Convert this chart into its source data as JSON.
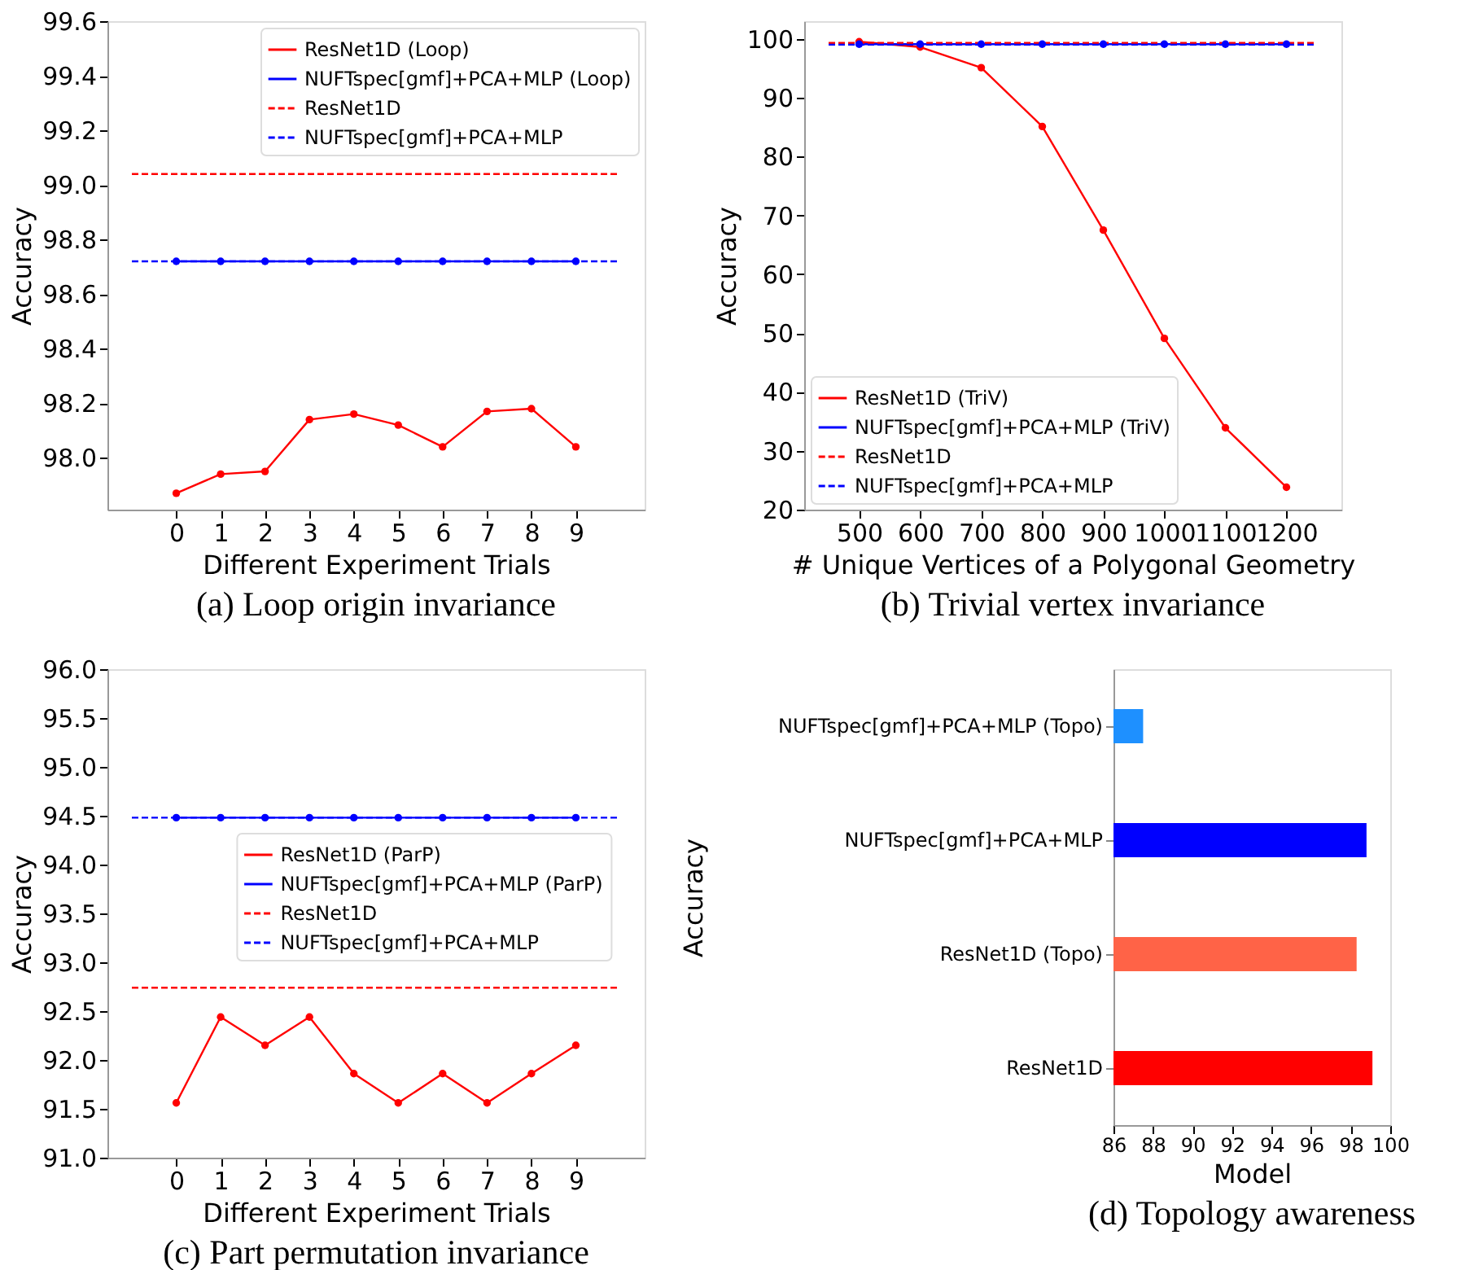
{
  "chart_data": [
    {
      "type": "line",
      "title": "(a) Loop origin invariance",
      "xlabel": "Different Experiment Trials",
      "ylabel": "Accuracy",
      "xlim": [
        -1.55,
        10.55
      ],
      "ylim": [
        97.81,
        99.6
      ],
      "xticks": [
        0,
        1,
        2,
        3,
        4,
        5,
        6,
        7,
        8,
        9
      ],
      "yticks": [
        {
          "value": 98,
          "label": "98.0"
        },
        98.2,
        98.4,
        98.6,
        98.8,
        {
          "value": 99,
          "label": "99.0"
        },
        99.2,
        99.4,
        99.6
      ],
      "grid": false,
      "legend": "top right",
      "series": [
        {
          "name": "ResNet1D (Loop)",
          "color": "#ff0000",
          "marker": "circle",
          "line_style": "solid",
          "x": [
            0,
            1,
            2,
            3,
            4,
            5,
            6,
            7,
            8,
            9
          ],
          "values": [
            97.87,
            97.94,
            97.95,
            98.14,
            98.16,
            98.12,
            98.04,
            98.17,
            98.18,
            98.04
          ]
        },
        {
          "name": "NUFTspec[gmf]+PCA+MLP (Loop)",
          "color": "#0000ff",
          "marker": "circle",
          "line_style": "solid",
          "x": [
            0,
            1,
            2,
            3,
            4,
            5,
            6,
            7,
            8,
            9
          ],
          "values": [
            98.72,
            98.72,
            98.72,
            98.72,
            98.72,
            98.72,
            98.72,
            98.72,
            98.72,
            98.72
          ]
        },
        {
          "name": "ResNet1D",
          "color": "#ff0000",
          "marker": "none",
          "line_style": "dashed",
          "x": [
            -1,
            10
          ],
          "values": [
            99.04,
            99.04
          ]
        },
        {
          "name": "NUFTspec[gmf]+PCA+MLP",
          "color": "#0000ff",
          "marker": "none",
          "line_style": "dashed",
          "x": [
            -1,
            10
          ],
          "values": [
            98.72,
            98.72
          ]
        }
      ]
    },
    {
      "type": "line",
      "title": "(b) Trivial vertex invariance",
      "xlabel": "# Unique Vertices of a Polygonal Geometry",
      "ylabel": "Accuracy",
      "xlim": [
        410,
        1290
      ],
      "ylim": [
        20,
        103
      ],
      "xticks": [
        500,
        600,
        700,
        800,
        900,
        1000,
        1100,
        1200
      ],
      "yticks": [
        20,
        30,
        40,
        50,
        60,
        70,
        80,
        90,
        100
      ],
      "grid": false,
      "legend": "bottom left",
      "series": [
        {
          "name": "ResNet1D (TriV)",
          "color": "#ff0000",
          "marker": "circle",
          "line_style": "solid",
          "x": [
            500,
            600,
            700,
            800,
            900,
            1000,
            1100,
            1200
          ],
          "values": [
            99.5,
            98.6,
            95.1,
            85.1,
            67.5,
            49.1,
            33.9,
            23.8
          ]
        },
        {
          "name": "NUFTspec[gmf]+PCA+MLP (TriV)",
          "color": "#0000ff",
          "marker": "circle",
          "line_style": "solid",
          "x": [
            500,
            600,
            700,
            800,
            900,
            1000,
            1100,
            1200
          ],
          "values": [
            99.1,
            99.1,
            99.1,
            99.1,
            99.1,
            99.1,
            99.1,
            99.1
          ]
        },
        {
          "name": "ResNet1D",
          "color": "#ff0000",
          "marker": "none",
          "line_style": "dashed",
          "x": [
            450,
            1250
          ],
          "values": [
            99.3,
            99.3
          ]
        },
        {
          "name": "NUFTspec[gmf]+PCA+MLP",
          "color": "#0000ff",
          "marker": "none",
          "line_style": "dashed",
          "x": [
            450,
            1250
          ],
          "values": [
            99.0,
            99.0
          ]
        }
      ]
    },
    {
      "type": "line",
      "title": "(c) Part permutation invariance",
      "xlabel": "Different Experiment Trials",
      "ylabel": "Accuracy",
      "xlim": [
        -1.55,
        10.55
      ],
      "ylim": [
        91,
        96
      ],
      "xticks": [
        0,
        1,
        2,
        3,
        4,
        5,
        6,
        7,
        8,
        9
      ],
      "yticks": [
        {
          "value": 91,
          "label": "91.0"
        },
        91.5,
        {
          "value": 92,
          "label": "92.0"
        },
        92.5,
        {
          "value": 93,
          "label": "93.0"
        },
        93.5,
        {
          "value": 94,
          "label": "94.0"
        },
        94.5,
        {
          "value": 95,
          "label": "95.0"
        },
        95.5,
        {
          "value": 96,
          "label": "96.0"
        }
      ],
      "grid": false,
      "legend": "right",
      "series": [
        {
          "name": "ResNet1D (ParP)",
          "color": "#ff0000",
          "marker": "circle",
          "line_style": "solid",
          "x": [
            0,
            1,
            2,
            3,
            4,
            5,
            6,
            7,
            8,
            9
          ],
          "values": [
            91.56,
            92.44,
            92.15,
            92.44,
            91.86,
            91.56,
            91.86,
            91.56,
            91.86,
            92.15
          ]
        },
        {
          "name": "NUFTspec[gmf]+PCA+MLP (ParP)",
          "color": "#0000ff",
          "marker": "circle",
          "line_style": "solid",
          "x": [
            0,
            1,
            2,
            3,
            4,
            5,
            6,
            7,
            8,
            9
          ],
          "values": [
            94.48,
            94.48,
            94.48,
            94.48,
            94.48,
            94.48,
            94.48,
            94.48,
            94.48,
            94.48
          ]
        },
        {
          "name": "ResNet1D",
          "color": "#ff0000",
          "marker": "none",
          "line_style": "dashed",
          "x": [
            -1,
            10
          ],
          "values": [
            92.74,
            92.74
          ]
        },
        {
          "name": "NUFTspec[gmf]+PCA+MLP",
          "color": "#0000ff",
          "marker": "none",
          "line_style": "dashed",
          "x": [
            -1,
            10
          ],
          "values": [
            94.48,
            94.48
          ]
        }
      ]
    },
    {
      "type": "bar",
      "orientation": "horizontal",
      "title": "(d) Topology awareness",
      "xlabel": "Model",
      "ylabel": "Accuracy",
      "xlim": [
        86,
        100
      ],
      "xticks": [
        86,
        88,
        90,
        92,
        94,
        96,
        98,
        100
      ],
      "grid": false,
      "categories": [
        "NUFTspec[gmf]+PCA+MLP (Topo)",
        "NUFTspec[gmf]+PCA+MLP",
        "ResNet1D (Topo)",
        "ResNet1D"
      ],
      "values": [
        87.5,
        98.8,
        98.3,
        99.1
      ],
      "colors": [
        "#1e90ff",
        "#0000ff",
        "#ff6347",
        "#ff0000"
      ]
    }
  ]
}
